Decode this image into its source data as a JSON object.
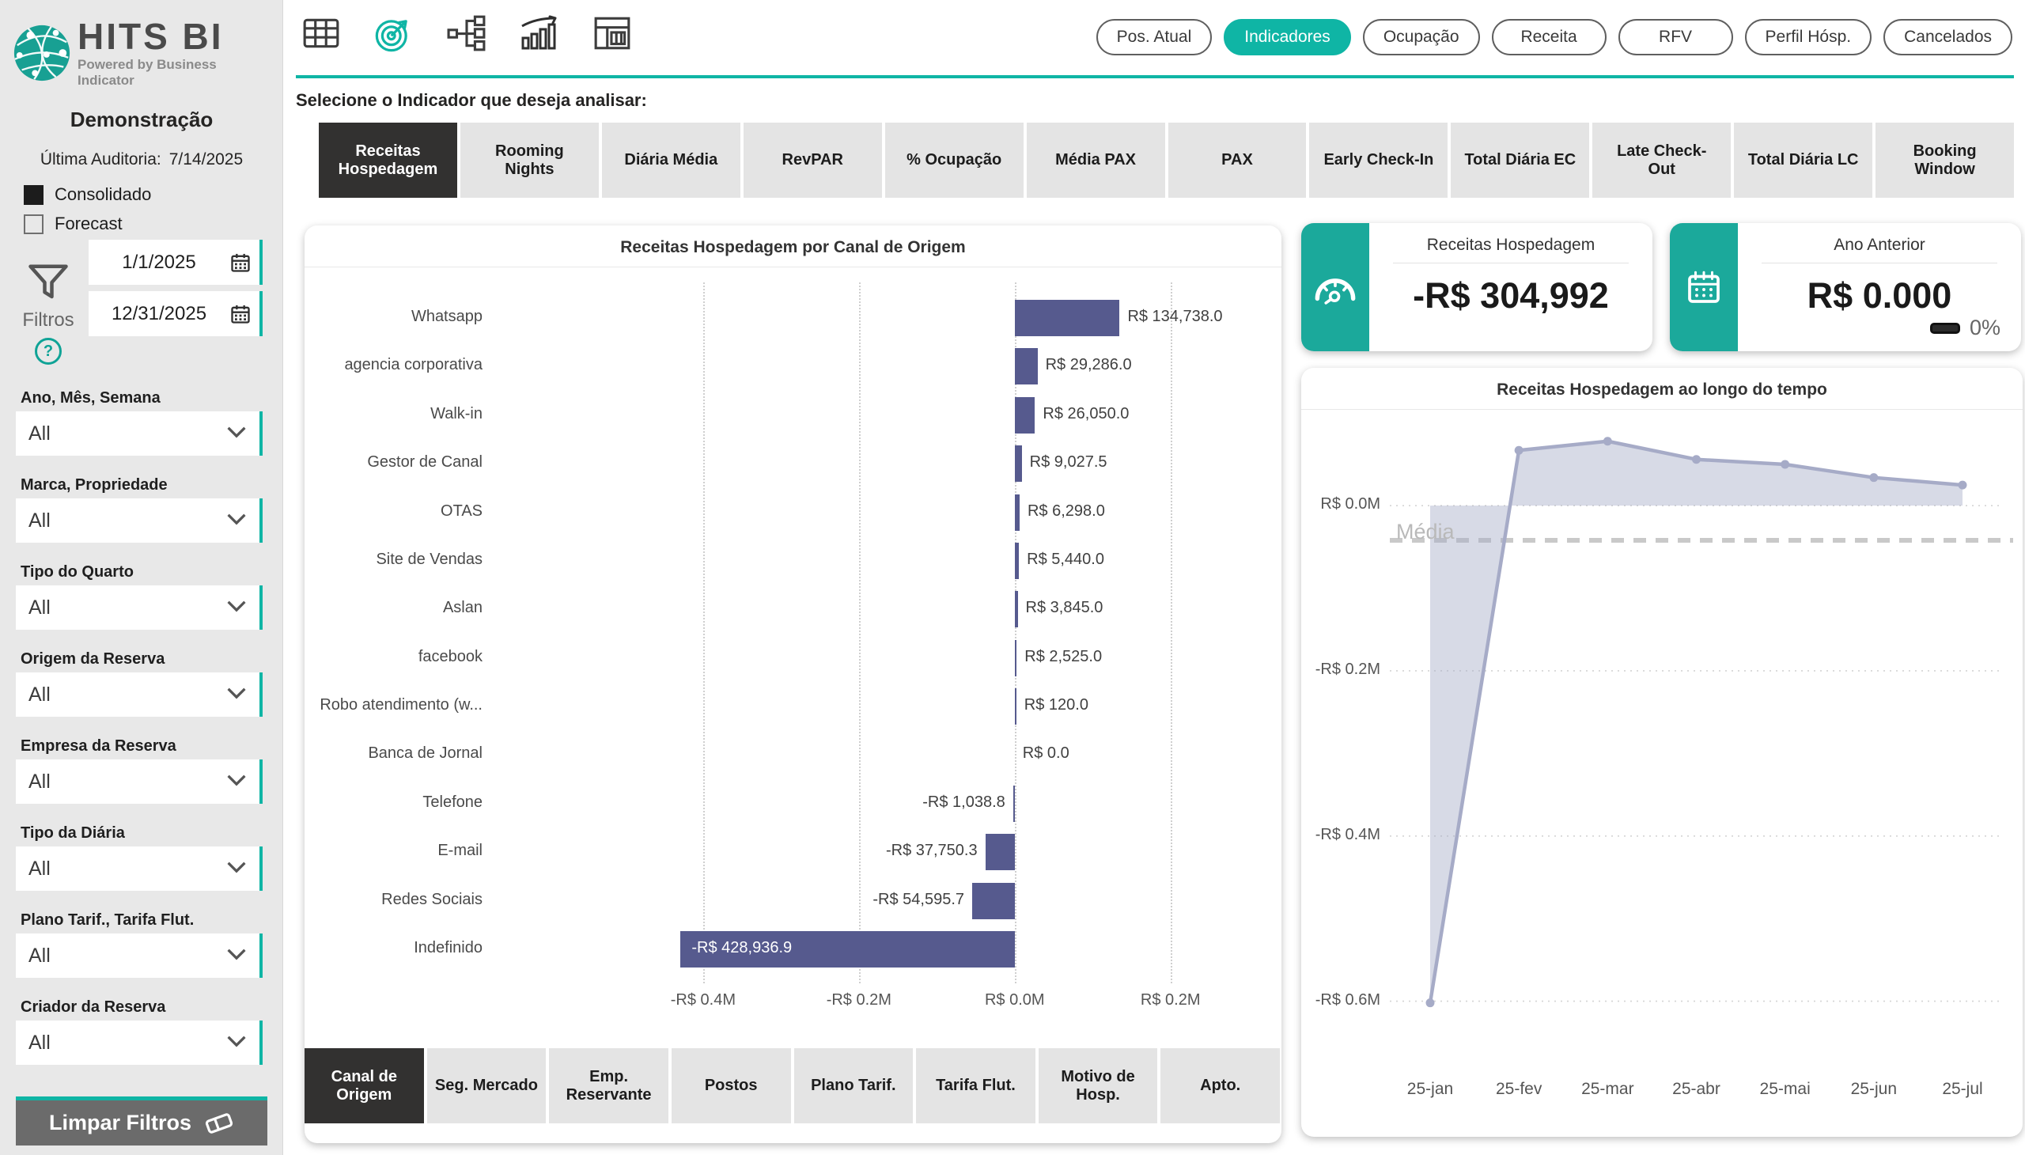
{
  "colors": {
    "accent": "#0fb5a5",
    "kpi_teal": "#1ba99b",
    "bar": "#565a8e",
    "line": "#a6abc7",
    "line_fill": "rgba(167,172,199,0.45)",
    "active_dark": "#323130",
    "logo_teal": "#18a093"
  },
  "logo": {
    "title": "HITS BI",
    "subtitle": "Powered by Business Indicator"
  },
  "sidebar": {
    "property_name": "Demonstração",
    "audit_label": "Última Auditoria:",
    "audit_date": "7/14/2025",
    "checkboxes": [
      {
        "label": "Consolidado",
        "checked": true
      },
      {
        "label": "Forecast",
        "checked": false
      }
    ],
    "filters_label": "Filtros",
    "help_icon": "?",
    "date_start": "1/1/2025",
    "date_end": "12/31/2025",
    "sections": [
      {
        "label": "Ano, Mês, Semana",
        "value": "All"
      },
      {
        "label": "Marca, Propriedade",
        "value": "All"
      },
      {
        "label": "Tipo do Quarto",
        "value": "All"
      },
      {
        "label": "Origem da Reserva",
        "value": "All"
      },
      {
        "label": "Empresa da Reserva",
        "value": "All"
      },
      {
        "label": "Tipo da Diária",
        "value": "All"
      },
      {
        "label": "Plano Tarif., Tarifa Flut.",
        "value": "All"
      },
      {
        "label": "Criador da Reserva",
        "value": "All"
      }
    ],
    "clear_button": "Limpar Filtros"
  },
  "top_nav": {
    "icons": [
      {
        "name": "table-icon",
        "active": false
      },
      {
        "name": "target-icon",
        "active": true
      },
      {
        "name": "hierarchy-icon",
        "active": false
      },
      {
        "name": "trend-chart-icon",
        "active": false
      },
      {
        "name": "layout-icon",
        "active": false
      }
    ],
    "pills": [
      {
        "label": "Pos. Atual",
        "active": false
      },
      {
        "label": "Indicadores",
        "active": true
      },
      {
        "label": "Ocupação",
        "active": false
      },
      {
        "label": "Receita",
        "active": false
      },
      {
        "label": "RFV",
        "active": false
      },
      {
        "label": "Perfil Hósp.",
        "active": false
      },
      {
        "label": "Cancelados",
        "active": false
      }
    ]
  },
  "indicator_bar": {
    "prompt": "Selecione o Indicador que deseja analisar:",
    "buttons": [
      {
        "label": "Receitas Hospedagem",
        "active": true
      },
      {
        "label": "Rooming Nights",
        "active": false
      },
      {
        "label": "Diária Média",
        "active": false
      },
      {
        "label": "RevPAR",
        "active": false
      },
      {
        "label": "% Ocupação",
        "active": false
      },
      {
        "label": "Média PAX",
        "active": false
      },
      {
        "label": "PAX",
        "active": false
      },
      {
        "label": "Early Check-In",
        "active": false
      },
      {
        "label": "Total Diária EC",
        "active": false
      },
      {
        "label": "Late Check-Out",
        "active": false
      },
      {
        "label": "Total Diária LC",
        "active": false
      },
      {
        "label": "Booking Window",
        "active": false
      }
    ]
  },
  "kpi_cards": [
    {
      "icon": "gauge-icon",
      "title": "Receitas Hospedagem",
      "value": "-R$ 304,992"
    },
    {
      "icon": "calendar-icon",
      "title": "Ano Anterior",
      "value": "R$ 0.000",
      "delta": "0%"
    }
  ],
  "bottom_tabs": [
    {
      "label": "Canal de Origem",
      "active": true
    },
    {
      "label": "Seg. Mercado",
      "active": false
    },
    {
      "label": "Emp. Reservante",
      "active": false
    },
    {
      "label": "Postos",
      "active": false
    },
    {
      "label": "Plano Tarif.",
      "active": false
    },
    {
      "label": "Tarifa Flut.",
      "active": false
    },
    {
      "label": "Motivo de Hosp.",
      "active": false
    },
    {
      "label": "Apto.",
      "active": false
    }
  ],
  "chart_data": [
    {
      "type": "bar",
      "orientation": "horizontal",
      "title": "Receitas Hospedagem por Canal de Origem",
      "categories": [
        "Whatsapp",
        "agencia corporativa",
        "Walk-in",
        "Gestor de Canal",
        "OTAS",
        "Site de Vendas",
        "Aslan",
        "facebook",
        "Robo atendimento (w...",
        "Banca de Jornal",
        "Telefone",
        "E-mail",
        "Redes Sociais",
        "Indefinido"
      ],
      "values": [
        134738.0,
        29286.0,
        26050.0,
        9027.5,
        6298.0,
        5440.0,
        3845.0,
        2525.0,
        120.0,
        0.0,
        -1038.8,
        -37750.3,
        -54595.7,
        -428936.9
      ],
      "value_labels": [
        "R$ 134,738.0",
        "R$ 29,286.0",
        "R$ 26,050.0",
        "R$ 9,027.5",
        "R$ 6,298.0",
        "R$ 5,440.0",
        "R$ 3,845.0",
        "R$ 2,525.0",
        "R$ 120.0",
        "R$ 0.0",
        "-R$ 1,038.8",
        "-R$ 37,750.3",
        "-R$ 54,595.7",
        "-R$ 428,936.9"
      ],
      "xlim": [
        -668000,
        312000
      ],
      "x_ticks": [
        {
          "value": -400000,
          "label": "-R$ 0.4M"
        },
        {
          "value": -200000,
          "label": "-R$ 0.2M"
        },
        {
          "value": 0,
          "label": "R$ 0.0M"
        },
        {
          "value": 200000,
          "label": "R$ 0.2M"
        }
      ],
      "grid": "dotted-vertical",
      "inside_label_categories": [
        "Indefinido"
      ]
    },
    {
      "type": "area",
      "title": "Receitas Hospedagem ao longo do tempo",
      "x": [
        "25-jan",
        "25-fev",
        "25-mar",
        "25-abr",
        "25-mai",
        "25-jun",
        "25-jul"
      ],
      "values": [
        -602000,
        67000,
        78000,
        56000,
        50000,
        34000,
        25000
      ],
      "ylim": [
        -700000,
        95000
      ],
      "y_ticks": [
        {
          "value": 0,
          "label": "R$ 0.0M"
        },
        {
          "value": -200000,
          "label": "-R$ 0.2M"
        },
        {
          "value": -400000,
          "label": "-R$ 0.4M"
        },
        {
          "value": -600000,
          "label": "-R$ 0.6M"
        }
      ],
      "mean_value": -42000,
      "mean_label": "Média",
      "grid": "dotted-horizontal",
      "legend": "none"
    }
  ]
}
